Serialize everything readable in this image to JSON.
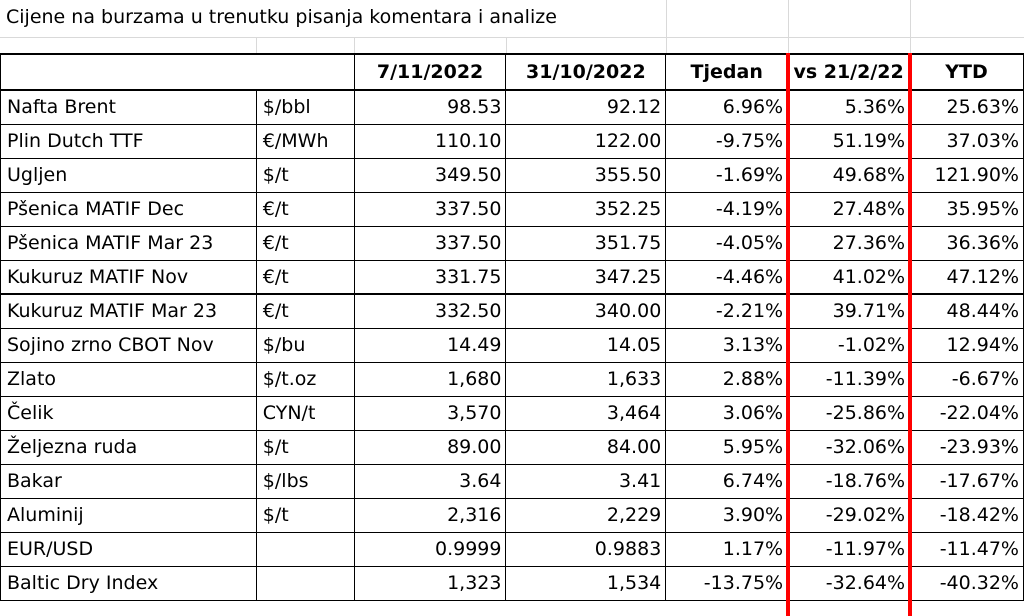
{
  "title": "Cijene na burzama u trenutku pisanja komentara i analize",
  "headers": [
    "",
    "",
    "7/11/2022",
    "31/10/2022",
    "Tjedan",
    "vs 21/2/22",
    "YTD"
  ],
  "rows": [
    {
      "name": "Nafta Brent",
      "unit": "$/bbl",
      "v1": "98.53",
      "v2": "92.12",
      "week": "6.96%",
      "vs": "5.36%",
      "ytd": "25.63%"
    },
    {
      "name": "Plin Dutch TTF",
      "unit": "€/MWh",
      "v1": "110.10",
      "v2": "122.00",
      "week": "-9.75%",
      "vs": "51.19%",
      "ytd": "37.03%"
    },
    {
      "name": "Ugljen",
      "unit": "$/t",
      "v1": "349.50",
      "v2": "355.50",
      "week": "-1.69%",
      "vs": "49.68%",
      "ytd": "121.90%"
    },
    {
      "name": "Pšenica MATIF Dec",
      "unit": "€/t",
      "v1": "337.50",
      "v2": "352.25",
      "week": "-4.19%",
      "vs": "27.48%",
      "ytd": "35.95%"
    },
    {
      "name": "Pšenica MATIF Mar 23",
      "unit": "€/t",
      "v1": "337.50",
      "v2": "351.75",
      "week": "-4.05%",
      "vs": "27.36%",
      "ytd": "36.36%"
    },
    {
      "name": "Kukuruz MATIF Nov",
      "unit": "€/t",
      "v1": "331.75",
      "v2": "347.25",
      "week": "-4.46%",
      "vs": "41.02%",
      "ytd": "47.12%"
    },
    {
      "name": "Kukuruz MATIF Mar 23",
      "unit": "€/t",
      "v1": "332.50",
      "v2": "340.00",
      "week": "-2.21%",
      "vs": "39.71%",
      "ytd": "48.44%"
    },
    {
      "name": "Sojino zrno CBOT Nov",
      "unit": "$/bu",
      "v1": "14.49",
      "v2": "14.05",
      "week": "3.13%",
      "vs": "-1.02%",
      "ytd": "12.94%"
    },
    {
      "name": "Zlato",
      "unit": "$/t.oz",
      "v1": "1,680",
      "v2": "1,633",
      "week": "2.88%",
      "vs": "-11.39%",
      "ytd": "-6.67%"
    },
    {
      "name": "Čelik",
      "unit": "CYN/t",
      "v1": "3,570",
      "v2": "3,464",
      "week": "3.06%",
      "vs": "-25.86%",
      "ytd": "-22.04%"
    },
    {
      "name": "Željezna ruda",
      "unit": "$/t",
      "v1": "89.00",
      "v2": "84.00",
      "week": "5.95%",
      "vs": "-32.06%",
      "ytd": "-23.93%"
    },
    {
      "name": "Bakar",
      "unit": "$/lbs",
      "v1": "3.64",
      "v2": "3.41",
      "week": "6.74%",
      "vs": "-18.76%",
      "ytd": "-17.67%"
    },
    {
      "name": "Aluminij",
      "unit": "$/t",
      "v1": "2,316",
      "v2": "2,229",
      "week": "3.90%",
      "vs": "-29.02%",
      "ytd": "-18.42%"
    },
    {
      "name": "EUR/USD",
      "unit": "",
      "v1": "0.9999",
      "v2": "0.9883",
      "week": "1.17%",
      "vs": "-11.97%",
      "ytd": "-11.47%"
    },
    {
      "name": "Baltic Dry Index",
      "unit": "",
      "v1": "1,323",
      "v2": "1,534",
      "week": "-13.75%",
      "vs": "-32.64%",
      "ytd": "-40.32%"
    }
  ],
  "colors": {
    "positive": "#2e9e4f",
    "negative": "#e8131b",
    "separator": "#ff0000"
  }
}
